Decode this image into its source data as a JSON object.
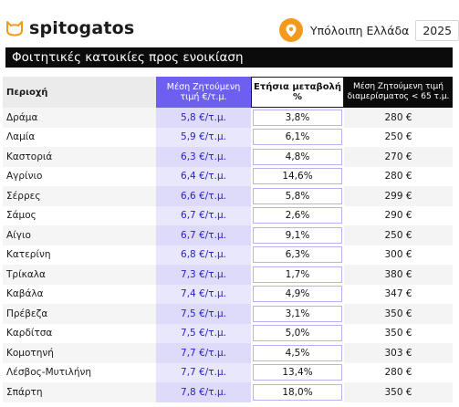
{
  "brand": {
    "name": "spitogatos",
    "accent": "#f29a1e"
  },
  "filter": {
    "region": "Υπόλοιπη Ελλάδα",
    "year": "2025"
  },
  "title": "Φοιτητικές κατοικίες προς ενοικίαση",
  "columns": {
    "area": "Περιοχή",
    "price": "Μέση Ζητούμενη τιμή €/τ.μ.",
    "change": "Ετήσια μεταβολή %",
    "studio": "Μέση Ζητούμενη τιμή διαμερίσματος < 65 τ.μ."
  },
  "rows": [
    {
      "area": "Δράμα",
      "price": "5,8 €/τ.μ.",
      "change": "3,8%",
      "studio": "280 €"
    },
    {
      "area": "Λαμία",
      "price": "5,9 €/τ.μ.",
      "change": "6,1%",
      "studio": "250 €"
    },
    {
      "area": "Καστοριά",
      "price": "6,3 €/τ.μ.",
      "change": "4,8%",
      "studio": "270 €"
    },
    {
      "area": "Αγρίνιο",
      "price": "6,4 €/τ.μ.",
      "change": "14,6%",
      "studio": "280 €"
    },
    {
      "area": "Σέρρες",
      "price": "6,6 €/τ.μ.",
      "change": "5,8%",
      "studio": "299 €"
    },
    {
      "area": "Σάμος",
      "price": "6,7 €/τ.μ.",
      "change": "2,6%",
      "studio": "290 €"
    },
    {
      "area": "Αίγιο",
      "price": "6,7 €/τ.μ.",
      "change": "9,1%",
      "studio": "250 €"
    },
    {
      "area": "Κατερίνη",
      "price": "6,8 €/τ.μ.",
      "change": "6,3%",
      "studio": "300 €"
    },
    {
      "area": "Τρίκαλα",
      "price": "7,3 €/τ.μ.",
      "change": "1,7%",
      "studio": "380 €"
    },
    {
      "area": "Καβάλα",
      "price": "7,4 €/τ.μ.",
      "change": "4,9%",
      "studio": "347 €"
    },
    {
      "area": "Πρέβεζα",
      "price": "7,5 €/τ.μ.",
      "change": "3,1%",
      "studio": "350 €"
    },
    {
      "area": "Καρδίτσα",
      "price": "7,5 €/τ.μ.",
      "change": "5,0%",
      "studio": "350 €"
    },
    {
      "area": "Κομοτηνή",
      "price": "7,7 €/τ.μ.",
      "change": "4,5%",
      "studio": "303 €"
    },
    {
      "area": "Λέσβος-Μυτιλήνη",
      "price": "7,7 €/τ.μ.",
      "change": "13,4%",
      "studio": "280 €"
    },
    {
      "area": "Σπάρτη",
      "price": "7,8 €/τ.μ.",
      "change": "18,0%",
      "studio": "350 €"
    }
  ]
}
